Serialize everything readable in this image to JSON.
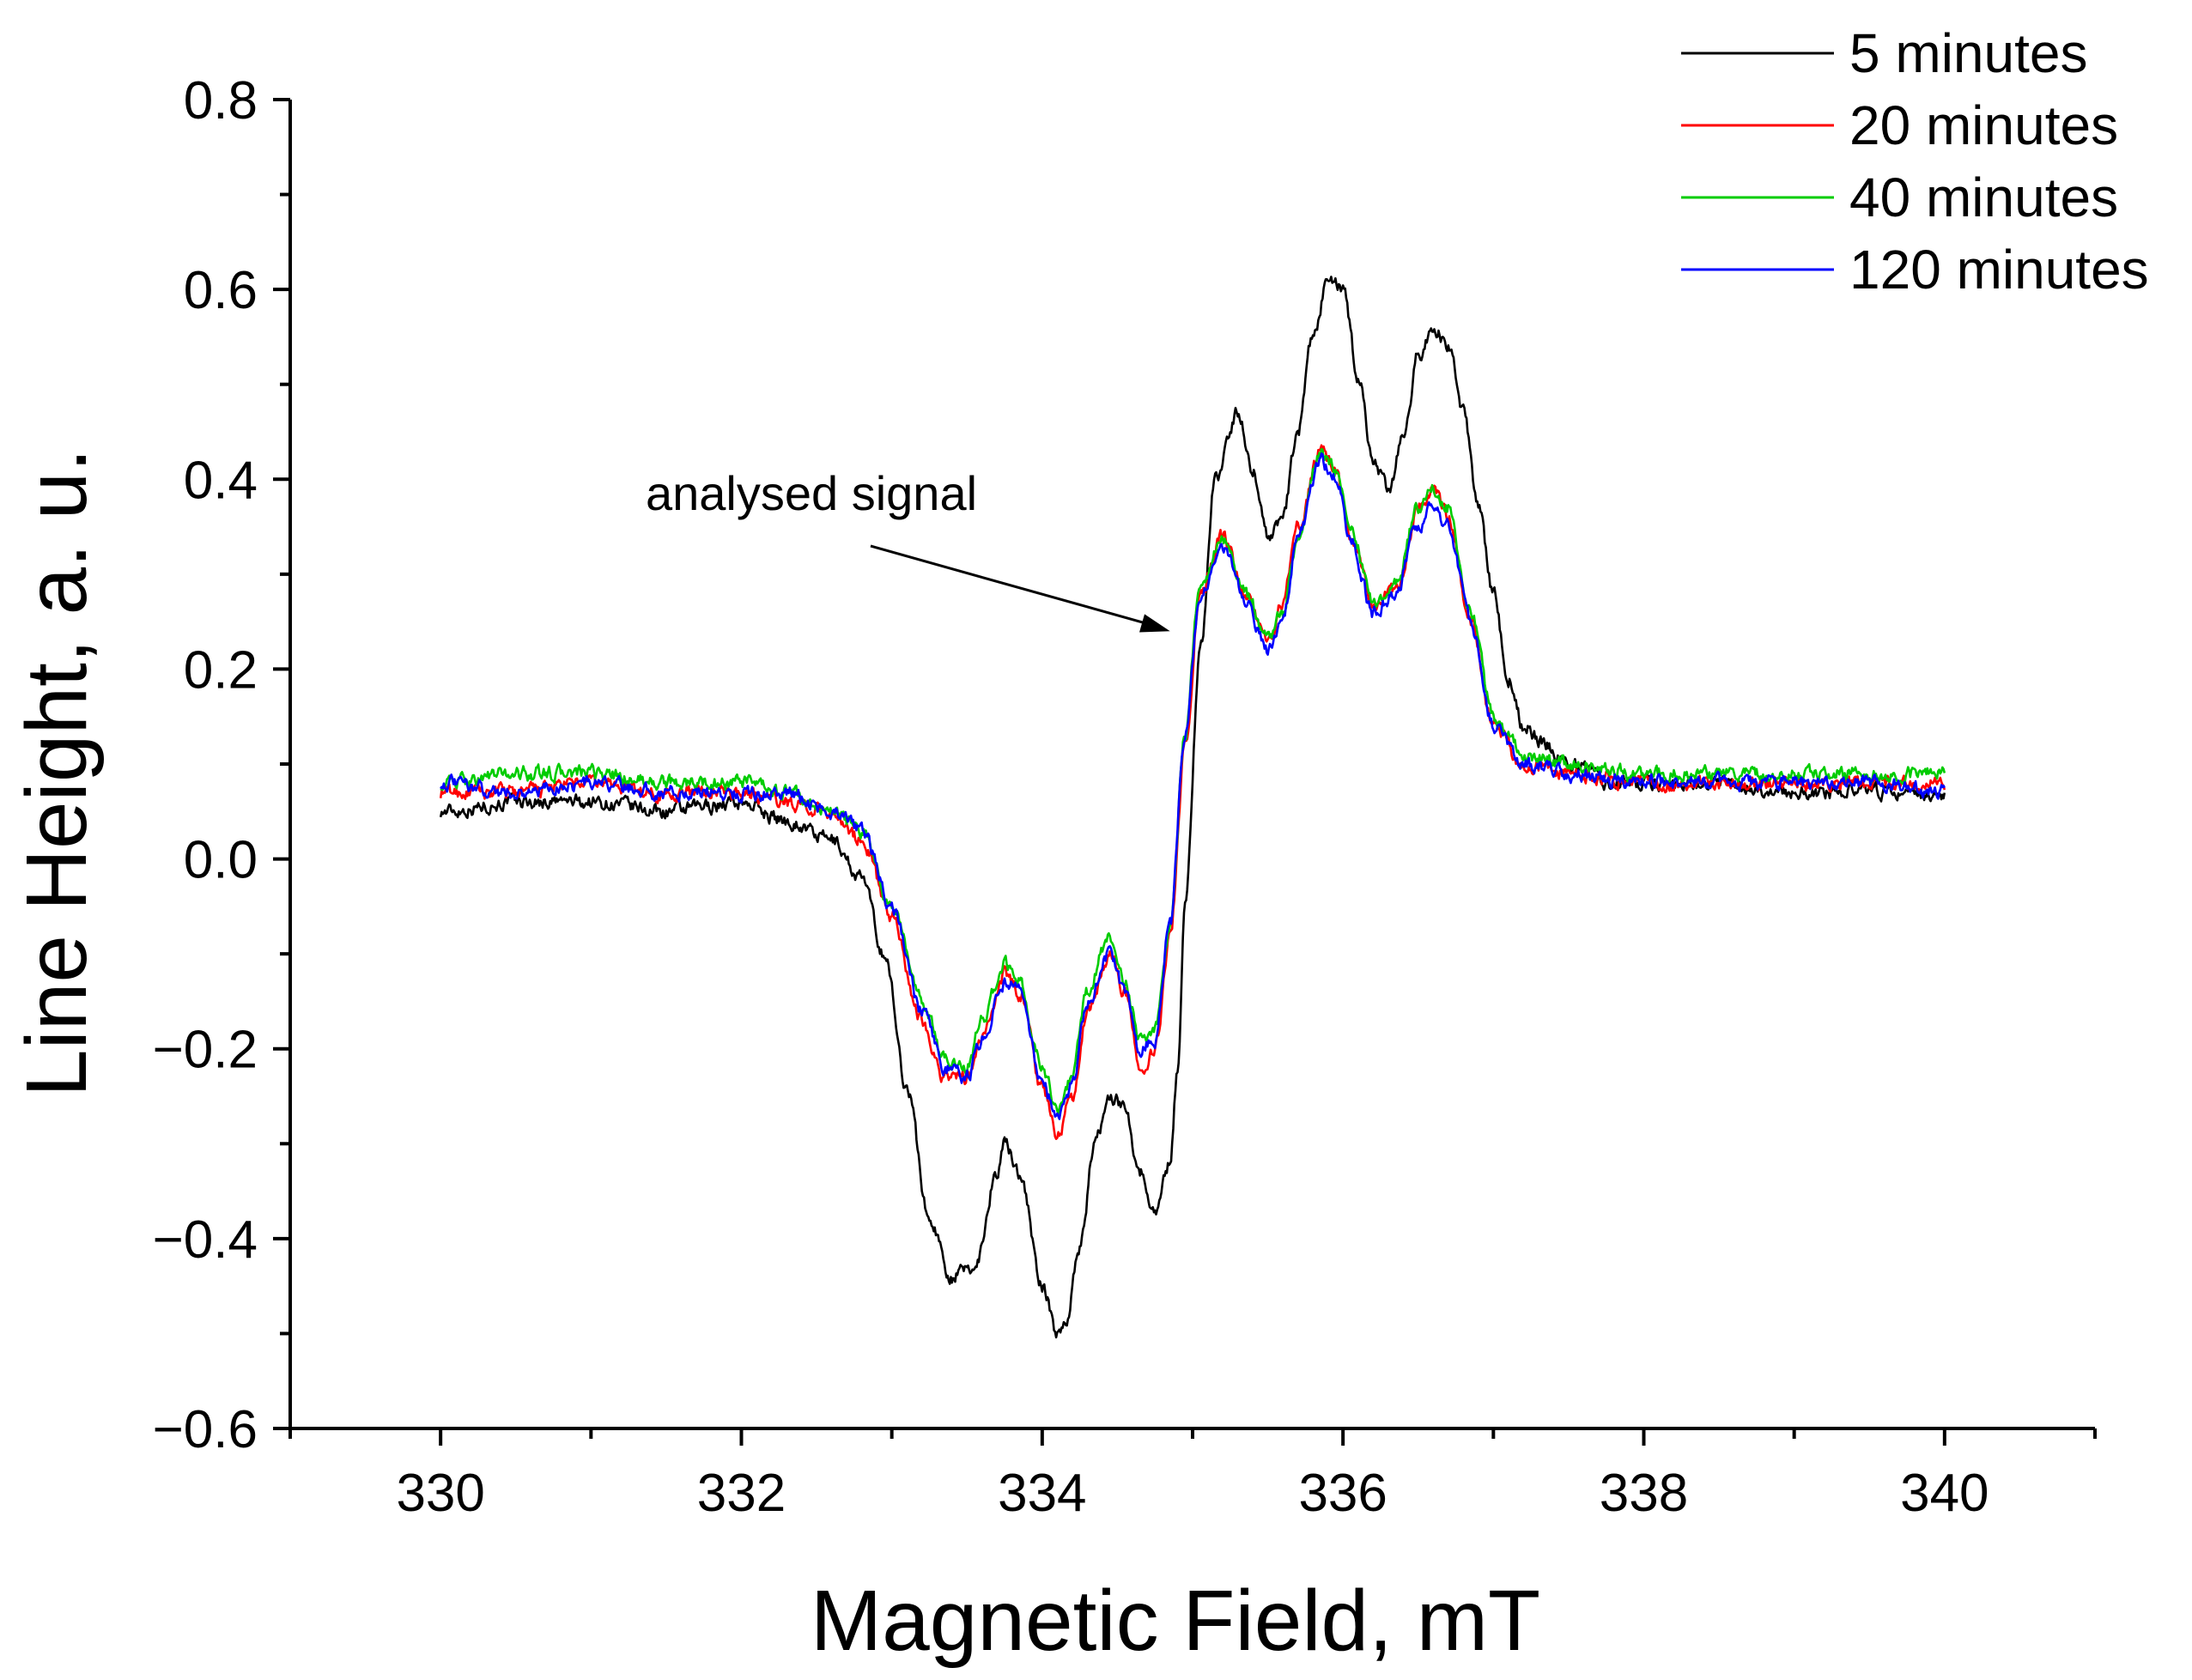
{
  "chart_data": {
    "type": "line",
    "title": "",
    "xlabel": "Magnetic Field, mT",
    "ylabel": "Line Height, a. u.",
    "xlim": [
      329,
      341
    ],
    "ylim": [
      -0.6,
      0.8
    ],
    "x_ticks": [
      330,
      332,
      334,
      336,
      338,
      340
    ],
    "x_tick_labels": [
      "330",
      "332",
      "334",
      "336",
      "338",
      "340"
    ],
    "x_minor_step": 1,
    "y_ticks": [
      0.8,
      0.6,
      0.4,
      0.2,
      0.0,
      -0.2,
      -0.4,
      -0.6
    ],
    "y_tick_labels": [
      "0.8",
      "0.6",
      "0.4",
      "0.2",
      "0.0",
      "−0.2",
      "−0.4",
      "−0.6"
    ],
    "y_minor_step": 0.1,
    "grid": false,
    "legend_position": "top-right",
    "annotation": {
      "text": "analysed signal",
      "arrow_target": {
        "x": 334.85,
        "y": 0.24
      }
    },
    "series": [
      {
        "name": "5 minutes",
        "color": "#000000",
        "x": [
          330.0,
          330.5,
          331.0,
          331.5,
          332.0,
          332.3,
          332.6,
          332.8,
          332.95,
          333.1,
          333.25,
          333.4,
          333.55,
          333.7,
          333.75,
          333.85,
          334.0,
          334.1,
          334.15,
          334.25,
          334.35,
          334.45,
          334.55,
          334.65,
          334.75,
          334.85,
          334.9,
          334.95,
          335.05,
          335.15,
          335.3,
          335.4,
          335.5,
          335.6,
          335.7,
          335.8,
          335.9,
          336.0,
          336.1,
          336.2,
          336.3,
          336.4,
          336.5,
          336.6,
          336.7,
          336.8,
          336.9,
          337.0,
          337.1,
          337.2,
          337.35,
          337.5,
          337.8,
          338.0,
          338.5,
          339.0,
          339.5,
          340.0
        ],
        "y": [
          0.05,
          0.06,
          0.06,
          0.05,
          0.06,
          0.04,
          0.02,
          -0.02,
          -0.1,
          -0.24,
          -0.38,
          -0.44,
          -0.43,
          -0.33,
          -0.3,
          -0.33,
          -0.45,
          -0.5,
          -0.49,
          -0.41,
          -0.3,
          -0.25,
          -0.26,
          -0.33,
          -0.37,
          -0.32,
          -0.22,
          -0.05,
          0.22,
          0.4,
          0.47,
          0.41,
          0.34,
          0.36,
          0.45,
          0.55,
          0.61,
          0.6,
          0.51,
          0.42,
          0.39,
          0.44,
          0.53,
          0.56,
          0.54,
          0.47,
          0.37,
          0.28,
          0.19,
          0.14,
          0.12,
          0.1,
          0.08,
          0.08,
          0.08,
          0.07,
          0.07,
          0.07
        ]
      },
      {
        "name": "20 minutes",
        "color": "#ff0000",
        "x": [
          330.0,
          330.5,
          331.0,
          331.5,
          332.0,
          332.3,
          332.6,
          332.8,
          333.0,
          333.2,
          333.35,
          333.5,
          333.6,
          333.75,
          333.85,
          334.0,
          334.1,
          334.2,
          334.3,
          334.45,
          334.55,
          334.65,
          334.75,
          334.85,
          334.95,
          335.05,
          335.2,
          335.35,
          335.5,
          335.6,
          335.7,
          335.85,
          335.95,
          336.05,
          336.2,
          336.35,
          336.5,
          336.6,
          336.7,
          336.85,
          337.0,
          337.2,
          337.5,
          338.0,
          338.5,
          339.0,
          339.5,
          340.0
        ],
        "y": [
          0.07,
          0.07,
          0.08,
          0.07,
          0.07,
          0.06,
          0.05,
          0.02,
          -0.06,
          -0.17,
          -0.23,
          -0.23,
          -0.19,
          -0.12,
          -0.14,
          -0.24,
          -0.29,
          -0.25,
          -0.16,
          -0.1,
          -0.14,
          -0.22,
          -0.2,
          -0.08,
          0.12,
          0.28,
          0.34,
          0.28,
          0.23,
          0.27,
          0.35,
          0.43,
          0.41,
          0.34,
          0.27,
          0.28,
          0.37,
          0.39,
          0.36,
          0.25,
          0.14,
          0.1,
          0.09,
          0.08,
          0.08,
          0.08,
          0.08,
          0.08
        ]
      },
      {
        "name": "40 minutes",
        "color": "#00cc00",
        "x": [
          330.0,
          330.5,
          331.0,
          331.5,
          332.0,
          332.3,
          332.6,
          332.8,
          333.0,
          333.2,
          333.35,
          333.5,
          333.6,
          333.75,
          333.85,
          334.0,
          334.1,
          334.2,
          334.3,
          334.45,
          334.55,
          334.65,
          334.75,
          334.85,
          334.95,
          335.05,
          335.2,
          335.35,
          335.5,
          335.6,
          335.7,
          335.85,
          335.95,
          336.05,
          336.2,
          336.35,
          336.5,
          336.6,
          336.7,
          336.85,
          337.0,
          337.2,
          337.5,
          338.0,
          338.5,
          339.0,
          339.5,
          340.0
        ],
        "y": [
          0.08,
          0.09,
          0.09,
          0.08,
          0.08,
          0.07,
          0.05,
          0.03,
          -0.05,
          -0.15,
          -0.21,
          -0.22,
          -0.17,
          -0.11,
          -0.13,
          -0.22,
          -0.26,
          -0.23,
          -0.14,
          -0.08,
          -0.13,
          -0.19,
          -0.18,
          -0.07,
          0.13,
          0.29,
          0.34,
          0.28,
          0.23,
          0.26,
          0.34,
          0.43,
          0.41,
          0.35,
          0.27,
          0.29,
          0.37,
          0.39,
          0.37,
          0.26,
          0.15,
          0.11,
          0.1,
          0.09,
          0.09,
          0.09,
          0.09,
          0.09
        ]
      },
      {
        "name": "120 minutes",
        "color": "#0000ff",
        "x": [
          330.0,
          330.5,
          331.0,
          331.5,
          332.0,
          332.3,
          332.6,
          332.8,
          333.0,
          333.2,
          333.35,
          333.5,
          333.6,
          333.75,
          333.85,
          334.0,
          334.1,
          334.2,
          334.3,
          334.45,
          334.55,
          334.65,
          334.75,
          334.85,
          334.95,
          335.05,
          335.2,
          335.35,
          335.5,
          335.6,
          335.7,
          335.85,
          335.95,
          336.05,
          336.2,
          336.35,
          336.5,
          336.6,
          336.7,
          336.85,
          337.0,
          337.2,
          337.5,
          338.0,
          338.5,
          339.0,
          339.5,
          340.0
        ],
        "y": [
          0.08,
          0.07,
          0.08,
          0.07,
          0.07,
          0.07,
          0.05,
          0.03,
          -0.05,
          -0.16,
          -0.22,
          -0.23,
          -0.19,
          -0.13,
          -0.14,
          -0.24,
          -0.27,
          -0.24,
          -0.15,
          -0.1,
          -0.14,
          -0.2,
          -0.19,
          -0.07,
          0.13,
          0.28,
          0.33,
          0.27,
          0.22,
          0.26,
          0.34,
          0.42,
          0.4,
          0.34,
          0.26,
          0.28,
          0.35,
          0.37,
          0.35,
          0.25,
          0.14,
          0.1,
          0.09,
          0.08,
          0.08,
          0.08,
          0.08,
          0.07
        ]
      }
    ]
  }
}
